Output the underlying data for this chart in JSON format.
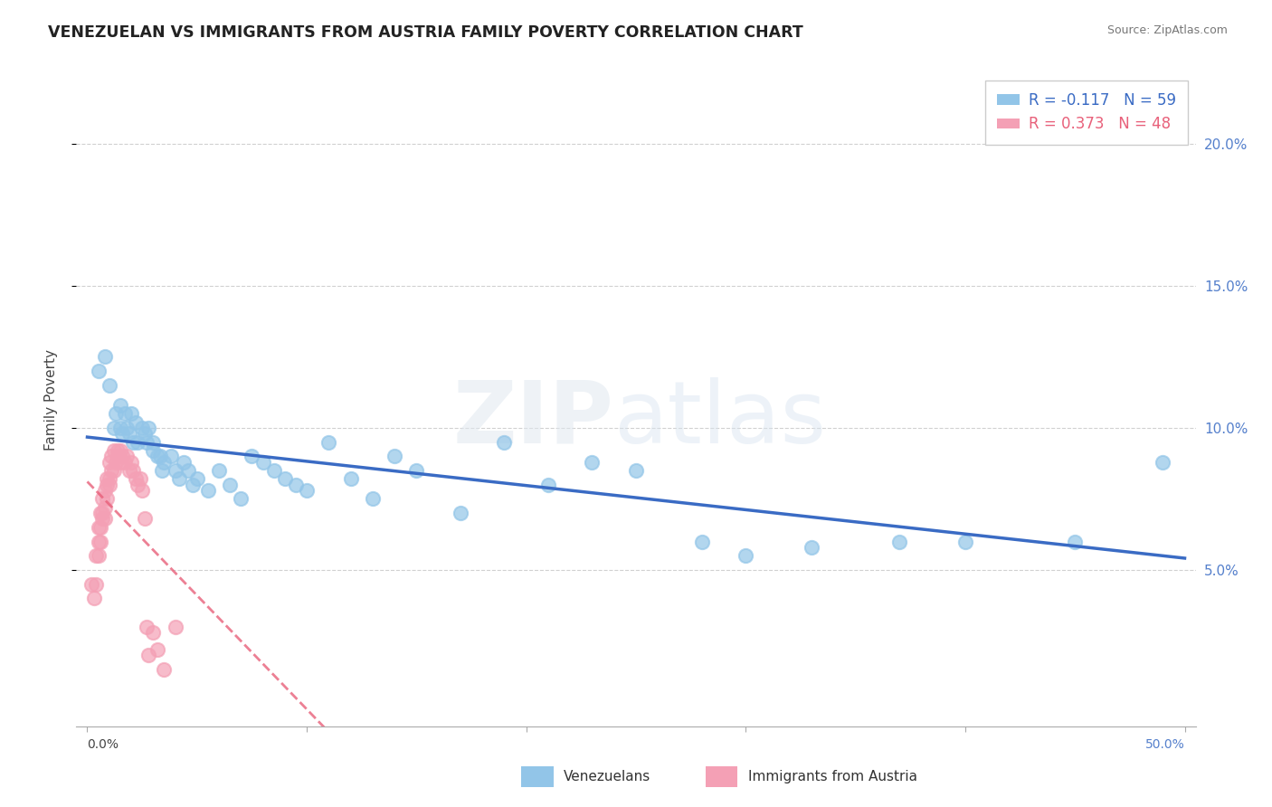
{
  "title": "VENEZUELAN VS IMMIGRANTS FROM AUSTRIA FAMILY POVERTY CORRELATION CHART",
  "source": "Source: ZipAtlas.com",
  "ylabel": "Family Poverty",
  "right_yticks": [
    "5.0%",
    "10.0%",
    "15.0%",
    "20.0%"
  ],
  "right_ytick_vals": [
    0.05,
    0.1,
    0.15,
    0.2
  ],
  "xlim": [
    -0.005,
    0.505
  ],
  "ylim": [
    -0.005,
    0.225
  ],
  "legend_label_1": "R = -0.117   N = 59",
  "legend_label_2": "R = 0.373   N = 48",
  "legend_color_1": "#92c5e8",
  "legend_color_2": "#f4a0b5",
  "watermark_zip": "ZIP",
  "watermark_atlas": "atlas",
  "venezuelan_color": "#92c5e8",
  "austria_color": "#f4a0b5",
  "trendline_venezuelan_color": "#3a6bc4",
  "trendline_austria_color": "#e8607a",
  "venezuelan_x": [
    0.005,
    0.008,
    0.01,
    0.012,
    0.013,
    0.015,
    0.015,
    0.016,
    0.017,
    0.018,
    0.019,
    0.02,
    0.021,
    0.022,
    0.023,
    0.025,
    0.026,
    0.027,
    0.028,
    0.03,
    0.03,
    0.032,
    0.033,
    0.034,
    0.035,
    0.038,
    0.04,
    0.042,
    0.044,
    0.046,
    0.048,
    0.05,
    0.055,
    0.06,
    0.065,
    0.07,
    0.075,
    0.08,
    0.085,
    0.09,
    0.095,
    0.1,
    0.11,
    0.12,
    0.13,
    0.14,
    0.15,
    0.17,
    0.19,
    0.21,
    0.23,
    0.25,
    0.28,
    0.3,
    0.33,
    0.37,
    0.4,
    0.45,
    0.49
  ],
  "venezuelan_y": [
    0.12,
    0.125,
    0.115,
    0.1,
    0.105,
    0.1,
    0.108,
    0.098,
    0.105,
    0.1,
    0.098,
    0.105,
    0.095,
    0.102,
    0.095,
    0.1,
    0.098,
    0.095,
    0.1,
    0.095,
    0.092,
    0.09,
    0.09,
    0.085,
    0.088,
    0.09,
    0.085,
    0.082,
    0.088,
    0.085,
    0.08,
    0.082,
    0.078,
    0.085,
    0.08,
    0.075,
    0.09,
    0.088,
    0.085,
    0.082,
    0.08,
    0.078,
    0.095,
    0.082,
    0.075,
    0.09,
    0.085,
    0.07,
    0.095,
    0.08,
    0.088,
    0.085,
    0.06,
    0.055,
    0.058,
    0.06,
    0.06,
    0.06,
    0.088
  ],
  "austria_x": [
    0.002,
    0.003,
    0.004,
    0.004,
    0.005,
    0.005,
    0.005,
    0.006,
    0.006,
    0.006,
    0.007,
    0.007,
    0.007,
    0.008,
    0.008,
    0.008,
    0.009,
    0.009,
    0.009,
    0.01,
    0.01,
    0.01,
    0.011,
    0.011,
    0.012,
    0.012,
    0.013,
    0.014,
    0.014,
    0.015,
    0.015,
    0.016,
    0.017,
    0.018,
    0.019,
    0.02,
    0.021,
    0.022,
    0.023,
    0.024,
    0.025,
    0.026,
    0.027,
    0.028,
    0.03,
    0.032,
    0.035,
    0.04
  ],
  "austria_y": [
    0.045,
    0.04,
    0.045,
    0.055,
    0.06,
    0.055,
    0.065,
    0.06,
    0.065,
    0.07,
    0.068,
    0.07,
    0.075,
    0.068,
    0.072,
    0.078,
    0.075,
    0.08,
    0.082,
    0.08,
    0.082,
    0.088,
    0.085,
    0.09,
    0.085,
    0.092,
    0.088,
    0.09,
    0.092,
    0.088,
    0.092,
    0.09,
    0.088,
    0.09,
    0.085,
    0.088,
    0.085,
    0.082,
    0.08,
    0.082,
    0.078,
    0.068,
    0.03,
    0.02,
    0.028,
    0.022,
    0.015,
    0.03
  ],
  "bottom_legend_label_1": "Venezuelans",
  "bottom_legend_label_2": "Immigrants from Austria"
}
